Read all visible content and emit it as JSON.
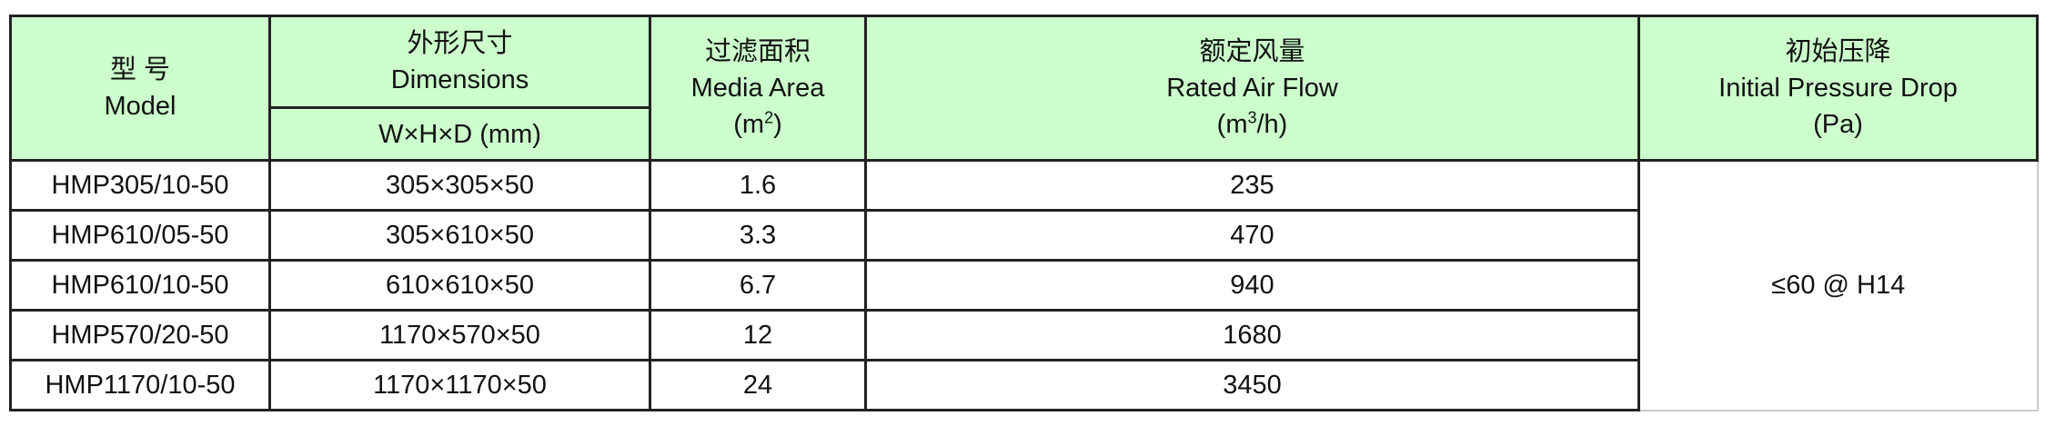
{
  "header": {
    "model": {
      "zh": "型 号",
      "en": "Model"
    },
    "dimensions": {
      "zh": "外形尺寸",
      "en": "Dimensions",
      "sub": "W×H×D (mm)"
    },
    "media_area": {
      "zh": "过滤面积",
      "en": "Media Area",
      "unit_base": "(m",
      "unit_sup": "2",
      "unit_end": ")"
    },
    "air_flow": {
      "zh": "额定风量",
      "en": "Rated Air Flow",
      "unit_base": "(m",
      "unit_sup": "3",
      "unit_end": "/h)"
    },
    "pressure": {
      "zh": "初始压降",
      "en": "Initial Pressure Drop",
      "unit": "(Pa)"
    }
  },
  "rows": [
    {
      "model": "HMP305/10-50",
      "dims": "305×305×50",
      "area": "1.6",
      "flow": "235"
    },
    {
      "model": "HMP610/05-50",
      "dims": "305×610×50",
      "area": "3.3",
      "flow": "470"
    },
    {
      "model": "HMP610/10-50",
      "dims": "610×610×50",
      "area": "6.7",
      "flow": "940"
    },
    {
      "model": "HMP570/20-50",
      "dims": "1170×570×50",
      "area": "12",
      "flow": "1680"
    },
    {
      "model": "HMP1170/10-50",
      "dims": "1170×1170×50",
      "area": "24",
      "flow": "3450"
    }
  ],
  "pressure_drop": "≤60 @ H14",
  "colors": {
    "header_bg": "#ccffcc",
    "border": "#222222"
  }
}
